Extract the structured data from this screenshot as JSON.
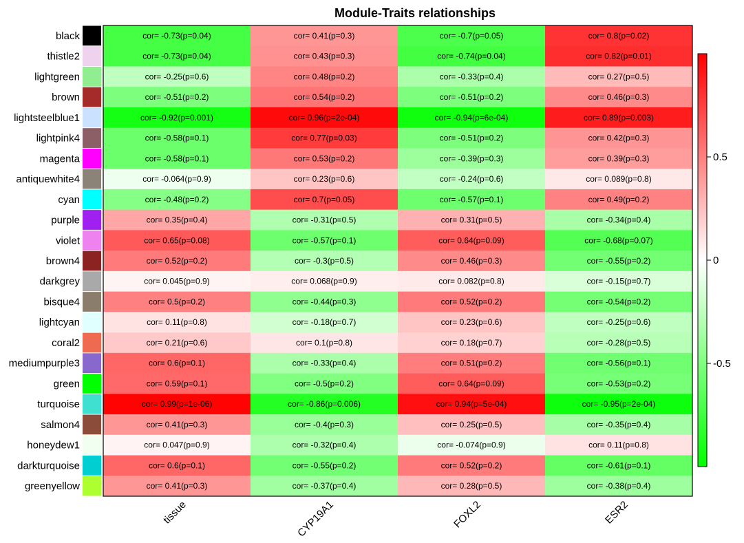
{
  "chart_data": {
    "type": "heatmap",
    "title": "Module-Traits relationships",
    "columns": [
      "tissue",
      "CYP19A1",
      "FOXL2",
      "ESR2"
    ],
    "colorscale": {
      "low": "#00ff00",
      "mid": "#ffffff",
      "high": "#ff0000",
      "range": [
        -1,
        1
      ]
    },
    "colorbar_ticks": [
      {
        "value": 0.5,
        "label": "0.5"
      },
      {
        "value": 0,
        "label": "0"
      },
      {
        "value": -0.5,
        "label": "-0.5"
      }
    ],
    "rows": [
      {
        "module": "black",
        "color": "#000000",
        "cor": [
          -0.73,
          0.41,
          -0.7,
          0.8
        ],
        "labels": [
          "cor= -0.73(p=0.04)",
          "cor= 0.41(p=0.3)",
          "cor= -0.7(p=0.05)",
          "cor= 0.8(p=0.02)"
        ]
      },
      {
        "module": "thistle2",
        "color": "#eed2ee",
        "cor": [
          -0.73,
          0.43,
          -0.74,
          0.82
        ],
        "labels": [
          "cor= -0.73(p=0.04)",
          "cor= 0.43(p=0.3)",
          "cor= -0.74(p=0.04)",
          "cor= 0.82(p=0.01)"
        ]
      },
      {
        "module": "lightgreen",
        "color": "#90ee90",
        "cor": [
          -0.25,
          0.48,
          -0.33,
          0.27
        ],
        "labels": [
          "cor= -0.25(p=0.6)",
          "cor= 0.48(p=0.2)",
          "cor= -0.33(p=0.4)",
          "cor= 0.27(p=0.5)"
        ]
      },
      {
        "module": "brown",
        "color": "#a52a2a",
        "cor": [
          -0.51,
          0.54,
          -0.51,
          0.46
        ],
        "labels": [
          "cor= -0.51(p=0.2)",
          "cor= 0.54(p=0.2)",
          "cor= -0.51(p=0.2)",
          "cor= 0.46(p=0.3)"
        ]
      },
      {
        "module": "lightsteelblue1",
        "color": "#cae1ff",
        "cor": [
          -0.92,
          0.96,
          -0.94,
          0.89
        ],
        "labels": [
          "cor= -0.92(p=0.001)",
          "cor= 0.96(p=2e-04)",
          "cor= -0.94(p=6e-04)",
          "cor= 0.89(p=0.003)"
        ]
      },
      {
        "module": "lightpink4",
        "color": "#8b5f65",
        "cor": [
          -0.58,
          0.77,
          -0.51,
          0.42
        ],
        "labels": [
          "cor= -0.58(p=0.1)",
          "cor= 0.77(p=0.03)",
          "cor= -0.51(p=0.2)",
          "cor= 0.42(p=0.3)"
        ]
      },
      {
        "module": "magenta",
        "color": "#ff00ff",
        "cor": [
          -0.58,
          0.53,
          -0.39,
          0.39
        ],
        "labels": [
          "cor= -0.58(p=0.1)",
          "cor= 0.53(p=0.2)",
          "cor= -0.39(p=0.3)",
          "cor= 0.39(p=0.3)"
        ]
      },
      {
        "module": "antiquewhite4",
        "color": "#8b8378",
        "cor": [
          -0.064,
          0.23,
          -0.24,
          0.089
        ],
        "labels": [
          "cor= -0.064(p=0.9)",
          "cor= 0.23(p=0.6)",
          "cor= -0.24(p=0.6)",
          "cor= 0.089(p=0.8)"
        ]
      },
      {
        "module": "cyan",
        "color": "#00ffff",
        "cor": [
          -0.48,
          0.7,
          -0.57,
          0.49
        ],
        "labels": [
          "cor= -0.48(p=0.2)",
          "cor= 0.7(p=0.05)",
          "cor= -0.57(p=0.1)",
          "cor= 0.49(p=0.2)"
        ]
      },
      {
        "module": "purple",
        "color": "#a020f0",
        "cor": [
          0.35,
          -0.31,
          0.31,
          -0.34
        ],
        "labels": [
          "cor= 0.35(p=0.4)",
          "cor= -0.31(p=0.5)",
          "cor= 0.31(p=0.5)",
          "cor= -0.34(p=0.4)"
        ]
      },
      {
        "module": "violet",
        "color": "#ee82ee",
        "cor": [
          0.65,
          -0.57,
          0.64,
          -0.68
        ],
        "labels": [
          "cor= 0.65(p=0.08)",
          "cor= -0.57(p=0.1)",
          "cor= 0.64(p=0.09)",
          "cor= -0.68(p=0.07)"
        ]
      },
      {
        "module": "brown4",
        "color": "#8b2323",
        "cor": [
          0.52,
          -0.3,
          0.46,
          -0.55
        ],
        "labels": [
          "cor= 0.52(p=0.2)",
          "cor= -0.3(p=0.5)",
          "cor= 0.46(p=0.3)",
          "cor= -0.55(p=0.2)"
        ]
      },
      {
        "module": "darkgrey",
        "color": "#a9a9a9",
        "cor": [
          0.045,
          0.068,
          0.082,
          -0.15
        ],
        "labels": [
          "cor= 0.045(p=0.9)",
          "cor= 0.068(p=0.9)",
          "cor= 0.082(p=0.8)",
          "cor= -0.15(p=0.7)"
        ]
      },
      {
        "module": "bisque4",
        "color": "#8b7d6b",
        "cor": [
          0.5,
          -0.44,
          0.52,
          -0.54
        ],
        "labels": [
          "cor= 0.5(p=0.2)",
          "cor= -0.44(p=0.3)",
          "cor= 0.52(p=0.2)",
          "cor= -0.54(p=0.2)"
        ]
      },
      {
        "module": "lightcyan",
        "color": "#e0ffff",
        "cor": [
          0.11,
          -0.18,
          0.23,
          -0.25
        ],
        "labels": [
          "cor= 0.11(p=0.8)",
          "cor= -0.18(p=0.7)",
          "cor= 0.23(p=0.6)",
          "cor= -0.25(p=0.6)"
        ]
      },
      {
        "module": "coral2",
        "color": "#ee6a50",
        "cor": [
          0.21,
          0.1,
          0.18,
          -0.28
        ],
        "labels": [
          "cor= 0.21(p=0.6)",
          "cor= 0.1(p=0.8)",
          "cor= 0.18(p=0.7)",
          "cor= -0.28(p=0.5)"
        ]
      },
      {
        "module": "mediumpurple3",
        "color": "#8968cd",
        "cor": [
          0.6,
          -0.33,
          0.51,
          -0.56
        ],
        "labels": [
          "cor= 0.6(p=0.1)",
          "cor= -0.33(p=0.4)",
          "cor= 0.51(p=0.2)",
          "cor= -0.56(p=0.1)"
        ]
      },
      {
        "module": "green",
        "color": "#00ff00",
        "cor": [
          0.59,
          -0.5,
          0.64,
          -0.53
        ],
        "labels": [
          "cor= 0.59(p=0.1)",
          "cor= -0.5(p=0.2)",
          "cor= 0.64(p=0.09)",
          "cor= -0.53(p=0.2)"
        ]
      },
      {
        "module": "turquoise",
        "color": "#40e0d0",
        "cor": [
          0.99,
          -0.86,
          0.94,
          -0.95
        ],
        "labels": [
          "cor= 0.99(p=1e-06)",
          "cor= -0.86(p=0.006)",
          "cor= 0.94(p=5e-04)",
          "cor= -0.95(p=2e-04)"
        ]
      },
      {
        "module": "salmon4",
        "color": "#8b4c39",
        "cor": [
          0.41,
          -0.4,
          0.25,
          -0.35
        ],
        "labels": [
          "cor= 0.41(p=0.3)",
          "cor= -0.4(p=0.3)",
          "cor= 0.25(p=0.5)",
          "cor= -0.35(p=0.4)"
        ]
      },
      {
        "module": "honeydew1",
        "color": "#f0fff0",
        "cor": [
          0.047,
          -0.32,
          -0.074,
          0.11
        ],
        "labels": [
          "cor= 0.047(p=0.9)",
          "cor= -0.32(p=0.4)",
          "cor= -0.074(p=0.9)",
          "cor= 0.11(p=0.8)"
        ]
      },
      {
        "module": "darkturquoise",
        "color": "#00ced1",
        "cor": [
          0.6,
          -0.55,
          0.52,
          -0.61
        ],
        "labels": [
          "cor= 0.6(p=0.1)",
          "cor= -0.55(p=0.2)",
          "cor= 0.52(p=0.2)",
          "cor= -0.61(p=0.1)"
        ]
      },
      {
        "module": "greenyellow",
        "color": "#adff2f",
        "cor": [
          0.41,
          -0.37,
          0.28,
          -0.38
        ],
        "labels": [
          "cor= 0.41(p=0.3)",
          "cor= -0.37(p=0.4)",
          "cor= 0.28(p=0.5)",
          "cor= -0.38(p=0.4)"
        ]
      }
    ]
  }
}
